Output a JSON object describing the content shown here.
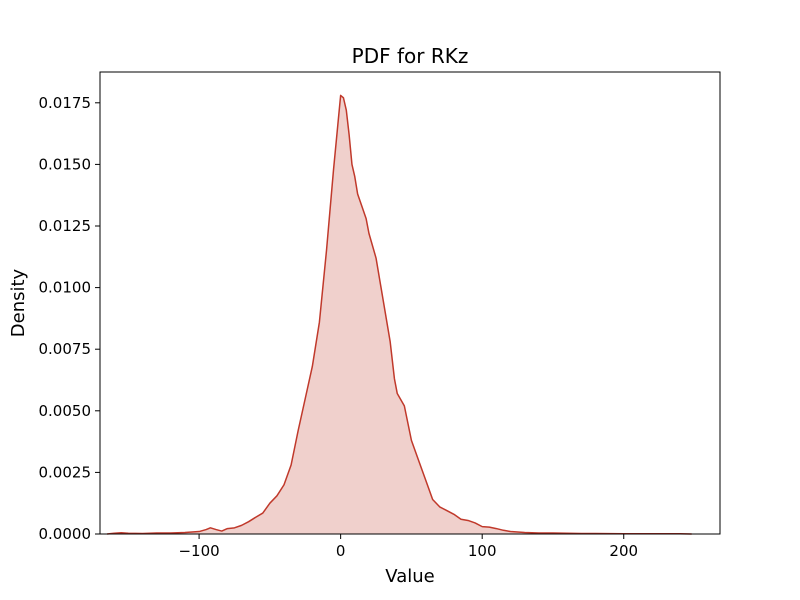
{
  "chart_data": {
    "type": "area",
    "title": "PDF for RKz",
    "xlabel": "Value",
    "ylabel": "Density",
    "xlim": [
      -170,
      268
    ],
    "ylim": [
      0,
      0.01875
    ],
    "grid": false,
    "legend": "none",
    "colors": {
      "line": "#c0392b",
      "fill": "#c0392b",
      "fill_opacity": 0.24
    },
    "x_ticks": [
      {
        "value": -100,
        "label": "−100"
      },
      {
        "value": 0,
        "label": "0"
      },
      {
        "value": 100,
        "label": "100"
      },
      {
        "value": 200,
        "label": "200"
      }
    ],
    "y_ticks": [
      {
        "value": 0.0,
        "label": "0.0000"
      },
      {
        "value": 0.0025,
        "label": "0.0025"
      },
      {
        "value": 0.005,
        "label": "0.0050"
      },
      {
        "value": 0.0075,
        "label": "0.0075"
      },
      {
        "value": 0.01,
        "label": "0.0100"
      },
      {
        "value": 0.0125,
        "label": "0.0125"
      },
      {
        "value": 0.015,
        "label": "0.0150"
      },
      {
        "value": 0.0175,
        "label": "0.0175"
      }
    ],
    "series": [
      {
        "x": [
          -165,
          -160,
          -155,
          -150,
          -140,
          -130,
          -120,
          -110,
          -100,
          -95,
          -92,
          -88,
          -84,
          -80,
          -75,
          -70,
          -65,
          -60,
          -55,
          -50,
          -45,
          -40,
          -35,
          -30,
          -25,
          -20,
          -15,
          -10,
          -5,
          -2,
          0,
          2,
          4,
          6,
          8,
          10,
          12,
          15,
          18,
          20,
          25,
          30,
          35,
          38,
          40,
          45,
          50,
          55,
          60,
          65,
          70,
          75,
          80,
          85,
          90,
          95,
          100,
          105,
          110,
          115,
          120,
          130,
          140,
          150,
          160,
          170,
          180,
          200,
          220,
          240,
          248
        ],
        "y": [
          0.0,
          3e-05,
          5e-05,
          3e-05,
          2e-05,
          4e-05,
          4e-05,
          6e-05,
          0.0001,
          0.00018,
          0.00025,
          0.00018,
          0.00012,
          0.00022,
          0.00025,
          0.00035,
          0.0005,
          0.00068,
          0.00085,
          0.00125,
          0.00155,
          0.002,
          0.0028,
          0.0042,
          0.0055,
          0.0068,
          0.0086,
          0.0115,
          0.0148,
          0.0166,
          0.0178,
          0.0177,
          0.0172,
          0.0162,
          0.015,
          0.0145,
          0.0138,
          0.0133,
          0.0128,
          0.0122,
          0.0112,
          0.0095,
          0.0078,
          0.0063,
          0.0057,
          0.0052,
          0.0038,
          0.003,
          0.0022,
          0.0014,
          0.0011,
          0.00095,
          0.0008,
          0.0006,
          0.00055,
          0.00045,
          0.0003,
          0.00028,
          0.00022,
          0.00015,
          0.0001,
          6e-05,
          4e-05,
          4e-05,
          3e-05,
          2e-05,
          2e-05,
          1e-05,
          1e-05,
          1e-05,
          0.0
        ]
      }
    ]
  }
}
